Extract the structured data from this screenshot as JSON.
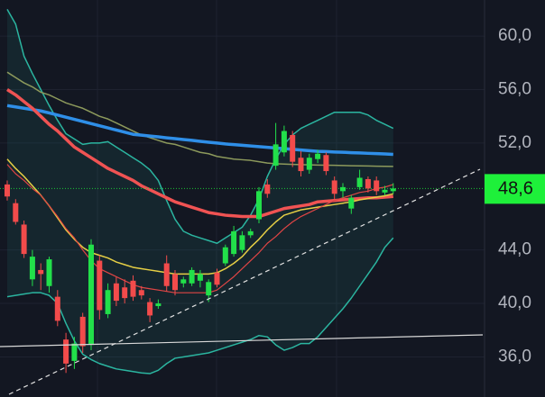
{
  "chart_data": {
    "type": "candlestick",
    "open": [
      48.9,
      47.5,
      45.9,
      41.8,
      42.5,
      41.3,
      40.5,
      37.3,
      35.7,
      39.0,
      36.9,
      43.2,
      39.2,
      41.5,
      41.2,
      41.7,
      41.0,
      40.1,
      39.8,
      43.0,
      42.2,
      41.5,
      41.5,
      41.7,
      40.6,
      42.3,
      43.0,
      43.7,
      44.0,
      45.1,
      46.3,
      48.9,
      50.3,
      51.3,
      52.6,
      50.9,
      50.0,
      50.8,
      51.1,
      49.2,
      48.4,
      47.1,
      48.7,
      49.3,
      49.2,
      48.3,
      48.4
    ],
    "high": [
      49.2,
      47.8,
      46.2,
      44.0,
      43.0,
      43.5,
      41.0,
      37.8,
      37.5,
      39.3,
      44.8,
      43.6,
      41.5,
      42.0,
      41.8,
      42.1,
      41.3,
      40.4,
      40.3,
      43.6,
      42.5,
      42.0,
      42.7,
      42.5,
      41.8,
      42.6,
      44.4,
      45.8,
      45.4,
      45.6,
      48.7,
      49.3,
      53.5,
      53.3,
      52.9,
      51.4,
      51.2,
      51.5,
      51.3,
      49.5,
      49.0,
      48.1,
      50.0,
      49.5,
      49.5,
      48.8,
      49.0
    ],
    "low": [
      47.7,
      45.9,
      43.4,
      41.3,
      41.0,
      40.8,
      38.3,
      34.8,
      35.1,
      36.3,
      36.5,
      38.8,
      38.9,
      39.8,
      40.0,
      40.2,
      40.3,
      38.6,
      39.6,
      40.9,
      40.6,
      41.2,
      41.3,
      41.2,
      40.1,
      41.2,
      42.8,
      43.5,
      43.8,
      44.9,
      46.0,
      47.9,
      50.0,
      51.0,
      50.2,
      49.5,
      49.7,
      50.5,
      49.6,
      47.8,
      47.9,
      46.7,
      48.5,
      48.3,
      48.1,
      48.1,
      48.2
    ],
    "close": [
      48.0,
      46.1,
      43.7,
      43.5,
      42.2,
      43.3,
      38.7,
      35.5,
      37.0,
      36.8,
      44.4,
      39.5,
      41.0,
      40.2,
      40.4,
      40.5,
      40.6,
      39.1,
      40.0,
      41.3,
      41.0,
      41.8,
      42.5,
      42.2,
      41.6,
      41.4,
      44.2,
      45.4,
      45.1,
      45.4,
      48.4,
      48.2,
      51.9,
      52.9,
      50.6,
      49.9,
      50.9,
      51.2,
      49.9,
      48.2,
      48.7,
      47.9,
      49.4,
      48.6,
      48.4,
      48.5,
      48.6
    ],
    "up_color": "#22e04a",
    "down_color": "#f24b4b",
    "band": {
      "color": "#2bb5a0",
      "fill": "rgba(43,181,160,0.10)",
      "upper": [
        62.0,
        60.9,
        58.5,
        57.2,
        56.0,
        54.8,
        53.7,
        52.7,
        52.3,
        51.9,
        52.0,
        52.0,
        52.1,
        51.7,
        51.3,
        50.9,
        50.5,
        50.0,
        49.2,
        47.7,
        46.3,
        45.4,
        45.1,
        44.9,
        44.7,
        44.5,
        44.9,
        45.3,
        45.7,
        46.6,
        47.8,
        49.5,
        50.8,
        51.9,
        52.6,
        53.1,
        53.4,
        53.7,
        54.0,
        54.3,
        54.3,
        54.3,
        54.3,
        54.1,
        53.7,
        53.4,
        53.1
      ],
      "lower": [
        40.5,
        40.6,
        40.7,
        40.8,
        40.8,
        40.6,
        40.0,
        38.5,
        37.2,
        36.2,
        35.8,
        35.5,
        35.3,
        35.1,
        35.0,
        34.9,
        34.8,
        34.75,
        35.0,
        35.5,
        35.9,
        36.0,
        36.1,
        36.2,
        36.3,
        36.5,
        36.7,
        36.9,
        37.1,
        37.3,
        37.6,
        37.5,
        36.9,
        36.5,
        36.7,
        37.0,
        37.0,
        37.5,
        38.2,
        38.9,
        39.6,
        40.4,
        41.3,
        42.2,
        43.1,
        44.2,
        44.9
      ]
    },
    "lines": [
      {
        "color": "#8d9a5c",
        "width": 1.5,
        "values": [
          57.3,
          56.9,
          56.5,
          56.2,
          55.8,
          55.6,
          55.3,
          55.0,
          54.8,
          54.6,
          54.3,
          54.0,
          53.8,
          53.5,
          53.2,
          52.9,
          52.6,
          52.4,
          52.2,
          52.0,
          51.9,
          51.7,
          51.5,
          51.3,
          51.2,
          51.0,
          50.9,
          50.8,
          50.75,
          50.7,
          50.6,
          50.5,
          50.45,
          50.43,
          50.4,
          50.38,
          50.37,
          50.35,
          50.34,
          50.33,
          50.32,
          50.3,
          50.29,
          50.28,
          50.27,
          50.26,
          50.25
        ]
      },
      {
        "color": "#2f8fe8",
        "width": 3.5,
        "values": [
          54.8,
          54.7,
          54.6,
          54.5,
          54.4,
          54.25,
          54.09,
          53.93,
          53.77,
          53.61,
          53.45,
          53.29,
          53.13,
          52.97,
          52.81,
          52.65,
          52.59,
          52.52,
          52.46,
          52.39,
          52.33,
          52.26,
          52.2,
          52.13,
          52.06,
          52.0,
          51.93,
          51.88,
          51.83,
          51.78,
          51.73,
          51.68,
          51.63,
          51.58,
          51.53,
          51.48,
          51.43,
          51.38,
          51.36,
          51.33,
          51.31,
          51.28,
          51.26,
          51.23,
          51.21,
          51.18,
          51.15
        ]
      },
      {
        "color": "#f05353",
        "width": 3.5,
        "values": [
          56.0,
          55.6,
          55.1,
          54.6,
          54.0,
          53.4,
          52.9,
          52.3,
          51.7,
          51.3,
          50.9,
          50.5,
          50.1,
          49.8,
          49.5,
          49.2,
          48.8,
          48.5,
          48.2,
          47.9,
          47.6,
          47.4,
          47.2,
          47.0,
          46.8,
          46.7,
          46.6,
          46.55,
          46.5,
          46.5,
          46.5,
          46.7,
          46.9,
          47.1,
          47.2,
          47.3,
          47.4,
          47.6,
          47.65,
          47.7,
          47.75,
          47.8,
          47.85,
          47.9,
          47.9,
          47.95,
          48.0
        ]
      },
      {
        "color": "#e6cf45",
        "width": 1.5,
        "values": [
          50.8,
          50.1,
          49.5,
          48.8,
          48.1,
          47.3,
          46.4,
          45.5,
          44.8,
          44.2,
          43.8,
          43.6,
          43.4,
          43.1,
          42.9,
          42.7,
          42.6,
          42.5,
          42.4,
          42.3,
          42.2,
          42.2,
          42.2,
          42.2,
          42.2,
          42.3,
          42.6,
          43.0,
          43.5,
          44.2,
          44.8,
          45.5,
          46.1,
          46.6,
          46.8,
          47.0,
          47.1,
          47.2,
          47.3,
          47.4,
          47.5,
          47.6,
          47.75,
          47.85,
          47.95,
          48.05,
          48.2
        ]
      },
      {
        "color": "#e04545",
        "width": 1.2,
        "values": [
          50.4,
          49.7,
          49.2,
          48.6,
          48.1,
          47.3,
          46.5,
          45.6,
          44.9,
          44.0,
          43.2,
          42.6,
          42.3,
          42.0,
          41.7,
          41.4,
          41.2,
          41.1,
          41.0,
          40.9,
          40.8,
          40.8,
          40.8,
          40.8,
          40.8,
          41.0,
          41.5,
          42.0,
          42.6,
          43.2,
          43.8,
          44.5,
          45.0,
          45.6,
          46.1,
          46.5,
          46.8,
          47.1,
          47.4,
          47.7,
          47.9,
          48.1,
          48.3,
          48.4,
          48.6,
          48.7,
          48.9
        ]
      }
    ],
    "ylim": [
      33.0,
      62.7
    ],
    "yticks": [
      {
        "value": 36,
        "label": "36,0"
      },
      {
        "value": 40,
        "label": "40,0"
      },
      {
        "value": 44,
        "label": "44,0"
      },
      {
        "value": 52,
        "label": "52,0"
      },
      {
        "value": 56,
        "label": "56,0"
      },
      {
        "value": 60,
        "label": "60,0"
      }
    ],
    "grid": true,
    "last_price": {
      "value": 48.6,
      "label": "48,6",
      "color": "#1ef03a"
    }
  }
}
